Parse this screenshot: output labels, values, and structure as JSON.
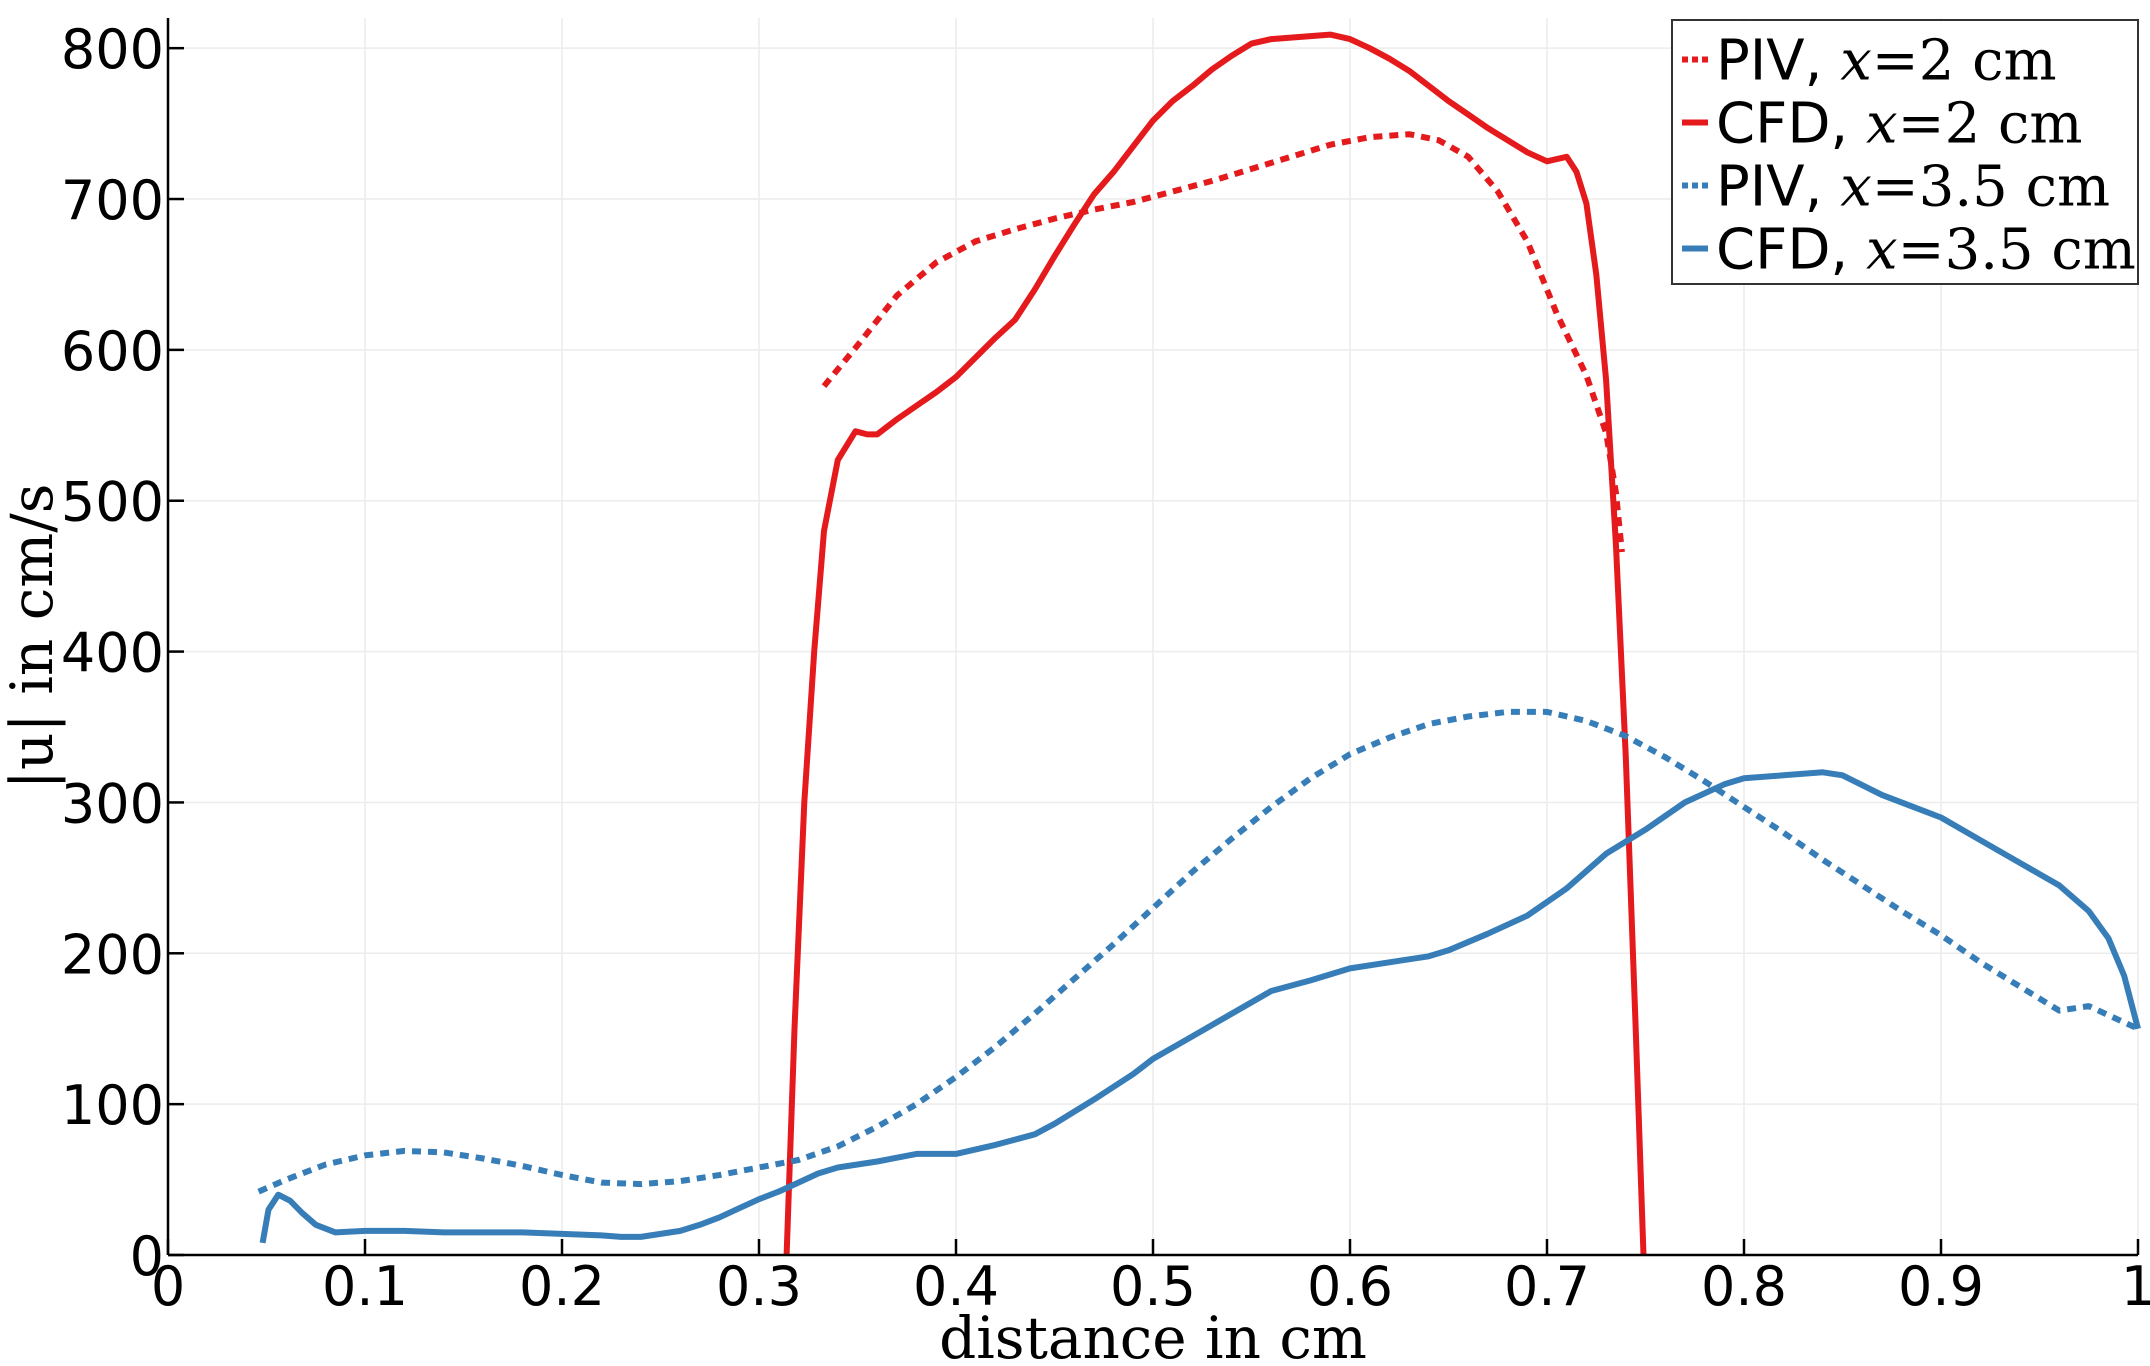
{
  "chart_data": {
    "type": "line",
    "xlabel": "distance in cm",
    "ylabel": "|u| in cm/s",
    "xlim": [
      0,
      1
    ],
    "ylim": [
      0,
      820
    ],
    "xticks": [
      0,
      0.1,
      0.2,
      0.3,
      0.4,
      0.5,
      0.6,
      0.7,
      0.8,
      0.9,
      1
    ],
    "xtick_labels": [
      "0",
      "0.1",
      "0.2",
      "0.3",
      "0.4",
      "0.5",
      "0.6",
      "0.7",
      "0.8",
      "0.9",
      "1"
    ],
    "yticks": [
      0,
      100,
      200,
      300,
      400,
      500,
      600,
      700,
      800
    ],
    "ytick_labels": [
      "0",
      "100",
      "200",
      "300",
      "400",
      "500",
      "600",
      "700",
      "800"
    ],
    "grid": true,
    "legend_position": "top-right",
    "series": [
      {
        "name": "PIV, x=2 cm",
        "label_prefix": "PIV,",
        "label_var": "x",
        "label_eq": "=",
        "label_value": "2",
        "label_unit": "cm",
        "color": "#e41a1c",
        "style": "dotted",
        "points": [
          [
            0.333,
            576
          ],
          [
            0.35,
            603
          ],
          [
            0.37,
            636
          ],
          [
            0.39,
            658
          ],
          [
            0.41,
            672
          ],
          [
            0.43,
            680
          ],
          [
            0.45,
            687
          ],
          [
            0.47,
            693
          ],
          [
            0.49,
            698
          ],
          [
            0.51,
            705
          ],
          [
            0.53,
            712
          ],
          [
            0.55,
            720
          ],
          [
            0.57,
            728
          ],
          [
            0.59,
            736
          ],
          [
            0.61,
            741
          ],
          [
            0.63,
            743
          ],
          [
            0.645,
            739
          ],
          [
            0.66,
            728
          ],
          [
            0.675,
            705
          ],
          [
            0.69,
            672
          ],
          [
            0.705,
            624
          ],
          [
            0.72,
            583
          ],
          [
            0.73,
            545
          ],
          [
            0.735,
            505
          ],
          [
            0.738,
            466
          ]
        ]
      },
      {
        "name": "CFD, x=2 cm",
        "label_prefix": "CFD,",
        "label_var": "x",
        "label_eq": "=",
        "label_value": "2",
        "label_unit": "cm",
        "color": "#e41a1c",
        "style": "solid",
        "points": [
          [
            0.314,
            0
          ],
          [
            0.318,
            150
          ],
          [
            0.323,
            300
          ],
          [
            0.328,
            400
          ],
          [
            0.333,
            480
          ],
          [
            0.34,
            527
          ],
          [
            0.349,
            546
          ],
          [
            0.355,
            544
          ],
          [
            0.36,
            544
          ],
          [
            0.37,
            554
          ],
          [
            0.38,
            563
          ],
          [
            0.39,
            572
          ],
          [
            0.4,
            582
          ],
          [
            0.41,
            595
          ],
          [
            0.42,
            608
          ],
          [
            0.43,
            620
          ],
          [
            0.44,
            640
          ],
          [
            0.45,
            662
          ],
          [
            0.46,
            683
          ],
          [
            0.47,
            703
          ],
          [
            0.48,
            718
          ],
          [
            0.49,
            735
          ],
          [
            0.5,
            752
          ],
          [
            0.51,
            765
          ],
          [
            0.52,
            775
          ],
          [
            0.53,
            786
          ],
          [
            0.54,
            795
          ],
          [
            0.55,
            803
          ],
          [
            0.56,
            806
          ],
          [
            0.57,
            807
          ],
          [
            0.58,
            808
          ],
          [
            0.59,
            809
          ],
          [
            0.6,
            806
          ],
          [
            0.61,
            800
          ],
          [
            0.62,
            793
          ],
          [
            0.63,
            785
          ],
          [
            0.64,
            775
          ],
          [
            0.65,
            765
          ],
          [
            0.66,
            756
          ],
          [
            0.67,
            747
          ],
          [
            0.68,
            739
          ],
          [
            0.69,
            731
          ],
          [
            0.7,
            725
          ],
          [
            0.71,
            728
          ],
          [
            0.715,
            718
          ],
          [
            0.72,
            697
          ],
          [
            0.725,
            650
          ],
          [
            0.73,
            580
          ],
          [
            0.735,
            470
          ],
          [
            0.74,
            330
          ],
          [
            0.745,
            150
          ],
          [
            0.749,
            0
          ]
        ]
      },
      {
        "name": "PIV, x=3.5 cm",
        "label_prefix": "PIV,",
        "label_var": "x",
        "label_eq": "=",
        "label_value": "3.5",
        "label_unit": "cm",
        "color": "#377eb8",
        "style": "dotted",
        "points": [
          [
            0.046,
            42
          ],
          [
            0.06,
            50
          ],
          [
            0.08,
            60
          ],
          [
            0.1,
            66
          ],
          [
            0.12,
            69
          ],
          [
            0.14,
            68
          ],
          [
            0.16,
            64
          ],
          [
            0.18,
            59
          ],
          [
            0.2,
            53
          ],
          [
            0.22,
            48
          ],
          [
            0.24,
            47
          ],
          [
            0.26,
            49
          ],
          [
            0.28,
            53
          ],
          [
            0.3,
            58
          ],
          [
            0.32,
            63
          ],
          [
            0.34,
            72
          ],
          [
            0.36,
            85
          ],
          [
            0.38,
            100
          ],
          [
            0.4,
            118
          ],
          [
            0.42,
            138
          ],
          [
            0.44,
            160
          ],
          [
            0.46,
            183
          ],
          [
            0.48,
            206
          ],
          [
            0.5,
            230
          ],
          [
            0.52,
            254
          ],
          [
            0.54,
            276
          ],
          [
            0.56,
            297
          ],
          [
            0.58,
            316
          ],
          [
            0.6,
            332
          ],
          [
            0.62,
            343
          ],
          [
            0.64,
            352
          ],
          [
            0.66,
            357
          ],
          [
            0.68,
            360
          ],
          [
            0.7,
            360
          ],
          [
            0.72,
            354
          ],
          [
            0.74,
            344
          ],
          [
            0.76,
            330
          ],
          [
            0.78,
            314
          ],
          [
            0.8,
            297
          ],
          [
            0.82,
            280
          ],
          [
            0.84,
            262
          ],
          [
            0.86,
            245
          ],
          [
            0.88,
            228
          ],
          [
            0.9,
            212
          ],
          [
            0.92,
            194
          ],
          [
            0.94,
            178
          ],
          [
            0.96,
            162
          ],
          [
            0.975,
            165
          ],
          [
            0.99,
            156
          ],
          [
            1.0,
            150
          ]
        ]
      },
      {
        "name": "CFD, x=3.5 cm",
        "label_prefix": "CFD,",
        "label_var": "x",
        "label_eq": "=",
        "label_value": "3.5",
        "label_unit": "cm",
        "color": "#377eb8",
        "style": "solid",
        "points": [
          [
            0.048,
            8
          ],
          [
            0.051,
            30
          ],
          [
            0.056,
            40
          ],
          [
            0.062,
            36
          ],
          [
            0.068,
            28
          ],
          [
            0.075,
            20
          ],
          [
            0.085,
            15
          ],
          [
            0.1,
            16
          ],
          [
            0.12,
            16
          ],
          [
            0.14,
            15
          ],
          [
            0.16,
            15
          ],
          [
            0.18,
            15
          ],
          [
            0.2,
            14
          ],
          [
            0.22,
            13
          ],
          [
            0.23,
            12
          ],
          [
            0.24,
            12
          ],
          [
            0.25,
            14
          ],
          [
            0.26,
            16
          ],
          [
            0.27,
            20
          ],
          [
            0.28,
            25
          ],
          [
            0.29,
            31
          ],
          [
            0.3,
            37
          ],
          [
            0.31,
            42
          ],
          [
            0.32,
            48
          ],
          [
            0.33,
            54
          ],
          [
            0.34,
            58
          ],
          [
            0.36,
            62
          ],
          [
            0.38,
            67
          ],
          [
            0.4,
            67
          ],
          [
            0.42,
            73
          ],
          [
            0.44,
            80
          ],
          [
            0.45,
            87
          ],
          [
            0.47,
            103
          ],
          [
            0.49,
            120
          ],
          [
            0.5,
            130
          ],
          [
            0.52,
            145
          ],
          [
            0.54,
            160
          ],
          [
            0.56,
            175
          ],
          [
            0.58,
            182
          ],
          [
            0.6,
            190
          ],
          [
            0.62,
            194
          ],
          [
            0.64,
            198
          ],
          [
            0.65,
            202
          ],
          [
            0.67,
            213
          ],
          [
            0.69,
            225
          ],
          [
            0.71,
            243
          ],
          [
            0.73,
            266
          ],
          [
            0.75,
            282
          ],
          [
            0.77,
            300
          ],
          [
            0.79,
            312
          ],
          [
            0.8,
            316
          ],
          [
            0.82,
            318
          ],
          [
            0.84,
            320
          ],
          [
            0.85,
            318
          ],
          [
            0.87,
            305
          ],
          [
            0.9,
            290
          ],
          [
            0.92,
            275
          ],
          [
            0.94,
            260
          ],
          [
            0.96,
            245
          ],
          [
            0.975,
            228
          ],
          [
            0.985,
            210
          ],
          [
            0.993,
            185
          ],
          [
            1.0,
            150
          ]
        ]
      }
    ]
  }
}
